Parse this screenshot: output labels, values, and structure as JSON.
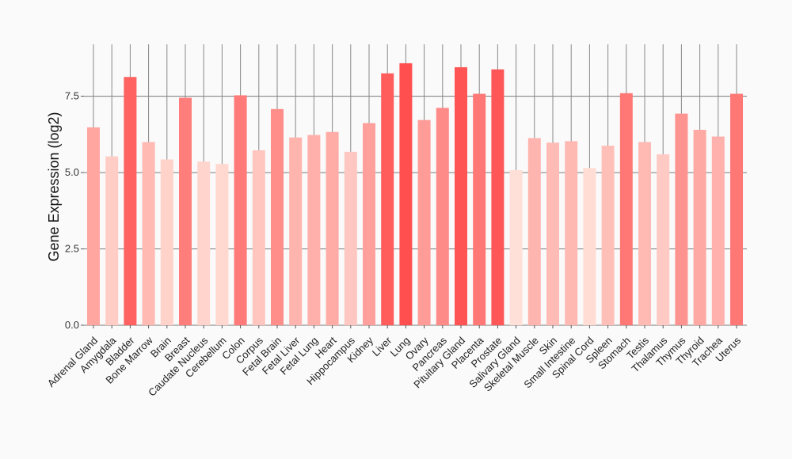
{
  "chart_data": {
    "type": "bar",
    "title": "",
    "xlabel": "",
    "ylabel": "Gene Expression (log2)",
    "ylim": [
      0,
      9.2
    ],
    "yticks": [
      0.0,
      2.5,
      5.0,
      7.5
    ],
    "ytick_labels": [
      "0.0",
      "2.5",
      "5.0",
      "7.5"
    ],
    "grid": true,
    "categories": [
      "Adrenal Gland",
      "Amygdala",
      "Bladder",
      "Bone Marrow",
      "Brain",
      "Breast",
      "Caudate Nucleus",
      "Cerebellum",
      "Colon",
      "Corpus",
      "Fetal Brain",
      "Fetal Liver",
      "Fetal Lung",
      "Heart",
      "Hippocampus",
      "Kidney",
      "Liver",
      "Lung",
      "Ovary",
      "Pancreas",
      "Pituitary Gland",
      "Placenta",
      "Prostate",
      "Salivary Gland",
      "Skeletal Muscle",
      "Skin",
      "Small Intestine",
      "Spinal Cord",
      "Spleen",
      "Stomach",
      "Testis",
      "Thalamus",
      "Thymus",
      "Thyroid",
      "Trachea",
      "Uterus"
    ],
    "values": [
      6.48,
      5.53,
      8.13,
      6.0,
      5.43,
      7.45,
      5.36,
      5.28,
      7.53,
      5.73,
      7.08,
      6.15,
      6.23,
      6.33,
      5.68,
      6.62,
      8.25,
      8.58,
      6.72,
      7.12,
      8.45,
      7.58,
      8.38,
      5.08,
      6.13,
      5.98,
      6.03,
      5.15,
      5.88,
      7.6,
      6.0,
      5.6,
      6.93,
      6.4,
      6.18,
      7.58
    ],
    "colors": {
      "min": "#ffe0d8",
      "max": "#ff4f4f",
      "grid": "#7a7a7a",
      "vgrid": "#888888",
      "background": "#fafafa"
    }
  }
}
